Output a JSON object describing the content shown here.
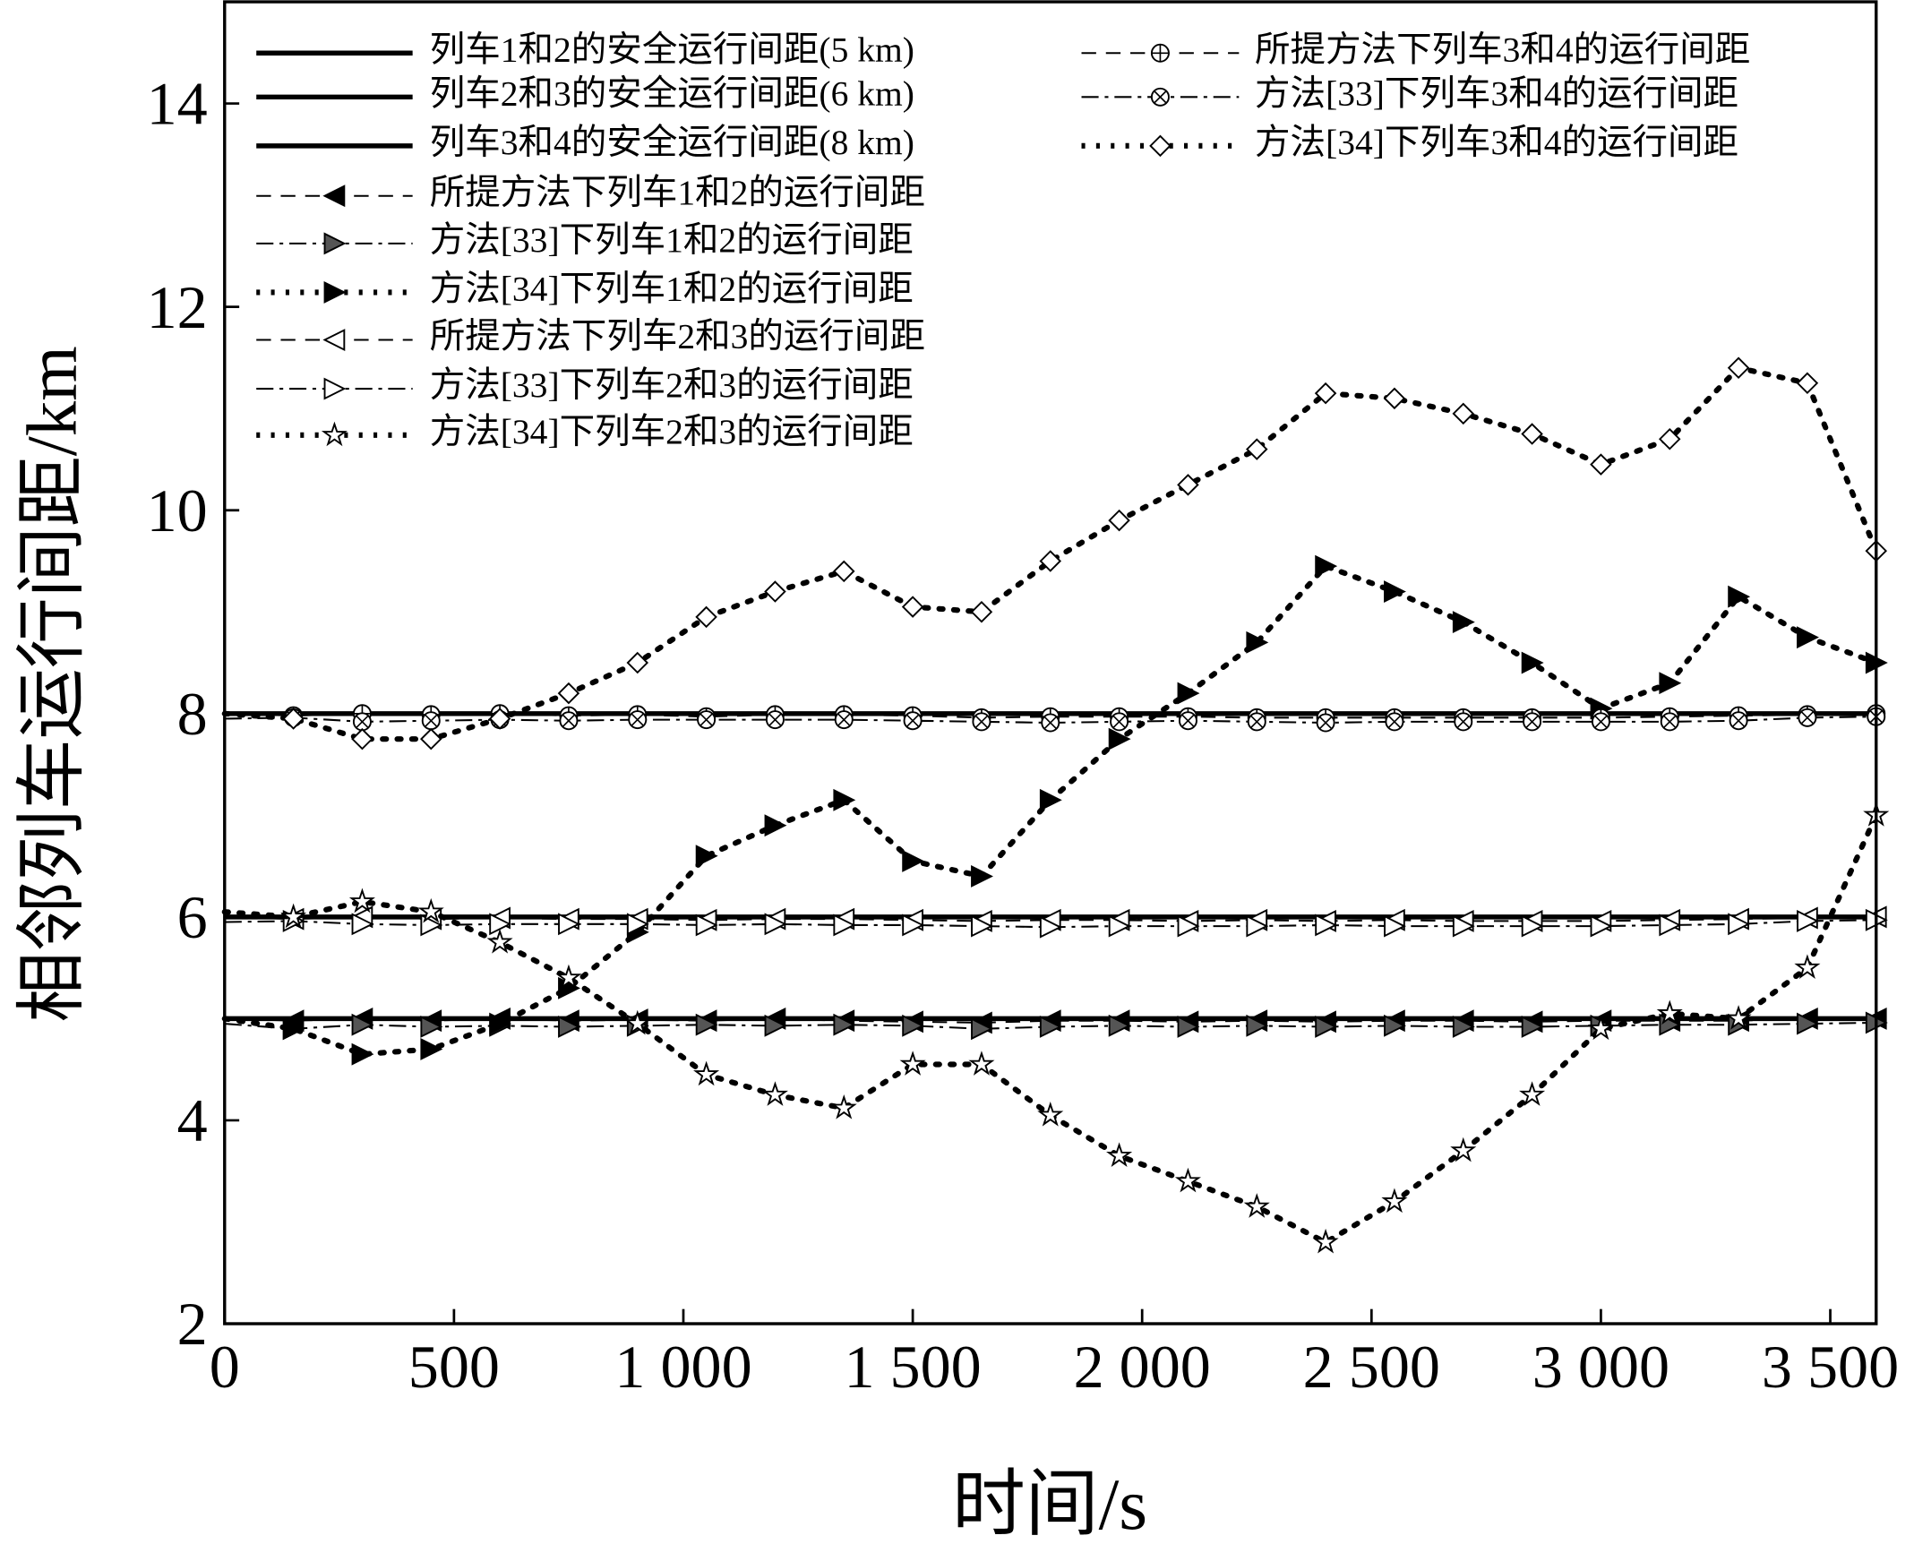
{
  "chart_data": {
    "type": "line",
    "xlabel": "时间/s",
    "ylabel": "相邻列车运行间距/km",
    "x": [
      0,
      150,
      300,
      450,
      600,
      750,
      900,
      1050,
      1200,
      1350,
      1500,
      1650,
      1800,
      1950,
      2100,
      2250,
      2400,
      2550,
      2700,
      2850,
      3000,
      3150,
      3300,
      3450,
      3600
    ],
    "xlim": [
      0,
      3600
    ],
    "xticks": [
      0,
      500,
      {
        "value": 1000,
        "label": "1 000"
      },
      {
        "value": 1500,
        "label": "1 500"
      },
      {
        "value": 2000,
        "label": "2 000"
      },
      {
        "value": 2500,
        "label": "2 500"
      },
      {
        "value": 3000,
        "label": "3 000"
      },
      {
        "value": 3500,
        "label": "3 500"
      }
    ],
    "ylim": [
      2,
      15
    ],
    "yticks": [
      2,
      4,
      6,
      8,
      10,
      12,
      14
    ],
    "series": [
      {
        "name": "列车1和2的安全运行间距(5 km)",
        "color": "#000",
        "style": "solid",
        "marker": "none",
        "values": [
          5,
          5,
          5,
          5,
          5,
          5,
          5,
          5,
          5,
          5,
          5,
          5,
          5,
          5,
          5,
          5,
          5,
          5,
          5,
          5,
          5,
          5,
          5,
          5,
          5
        ]
      },
      {
        "name": "列车2和3的安全运行间距(6 km)",
        "color": "#000",
        "style": "solid",
        "marker": "none",
        "values": [
          6,
          6,
          6,
          6,
          6,
          6,
          6,
          6,
          6,
          6,
          6,
          6,
          6,
          6,
          6,
          6,
          6,
          6,
          6,
          6,
          6,
          6,
          6,
          6,
          6
        ]
      },
      {
        "name": "列车3和4的安全运行间距(8 km)",
        "color": "#000",
        "style": "solid",
        "marker": "none",
        "values": [
          8,
          8,
          8,
          8,
          8,
          8,
          8,
          8,
          8,
          8,
          8,
          8,
          8,
          8,
          8,
          8,
          8,
          8,
          8,
          8,
          8,
          8,
          8,
          8,
          8
        ]
      },
      {
        "name": "所提方法下列车1和2的运行间距",
        "color": "#000",
        "style": "dashed",
        "marker": "tri-left-half",
        "values": [
          5,
          4.98,
          5,
          4.98,
          5,
          4.98,
          4.99,
          4.98,
          5,
          4.98,
          4.97,
          4.96,
          4.98,
          4.98,
          4.97,
          4.98,
          4.97,
          4.98,
          4.98,
          4.97,
          4.98,
          4.98,
          4.98,
          5,
          5
        ]
      },
      {
        "name": "方法[33]下列车1和2的运行间距",
        "color": "#000",
        "style": "dashdot",
        "marker": "tri-right-half",
        "values": [
          4.95,
          4.9,
          4.94,
          4.92,
          4.93,
          4.92,
          4.93,
          4.94,
          4.93,
          4.94,
          4.93,
          4.9,
          4.92,
          4.93,
          4.92,
          4.93,
          4.92,
          4.93,
          4.92,
          4.92,
          4.93,
          4.94,
          4.94,
          4.95,
          4.96
        ]
      },
      {
        "name": "方法[34]下列车1和2的运行间距",
        "color": "#000",
        "style": "dotted",
        "marker": "tri-right-filled",
        "values": [
          5,
          4.9,
          4.65,
          4.7,
          4.95,
          5.3,
          5.85,
          6.6,
          6.9,
          7.15,
          6.55,
          6.4,
          7.15,
          7.75,
          8.2,
          8.7,
          9.45,
          9.2,
          8.9,
          8.5,
          8.05,
          8.3,
          9.15,
          8.75,
          8.5
        ]
      },
      {
        "name": "所提方法下列车2和3的运行间距",
        "color": "#000",
        "style": "dashed",
        "marker": "tri-left",
        "values": [
          6,
          5.98,
          6,
          5.98,
          5.99,
          5.98,
          5.98,
          5.97,
          5.98,
          5.98,
          5.97,
          5.96,
          5.97,
          5.97,
          5.96,
          5.97,
          5.96,
          5.97,
          5.96,
          5.96,
          5.96,
          5.97,
          5.98,
          5.99,
          6
        ]
      },
      {
        "name": "方法[33]下列车2和3的运行间距",
        "color": "#000",
        "style": "dashdot",
        "marker": "tri-right",
        "values": [
          5.95,
          5.96,
          5.93,
          5.92,
          5.93,
          5.93,
          5.93,
          5.92,
          5.93,
          5.92,
          5.92,
          5.91,
          5.9,
          5.91,
          5.91,
          5.91,
          5.92,
          5.91,
          5.91,
          5.91,
          5.91,
          5.92,
          5.93,
          5.96,
          5.97
        ]
      },
      {
        "name": "方法[34]下列车2和3的运行间距",
        "color": "#000",
        "style": "dotted",
        "marker": "star",
        "values": [
          6.05,
          6,
          6.15,
          6.05,
          5.75,
          5.4,
          4.95,
          4.45,
          4.25,
          4.12,
          4.55,
          4.55,
          4.05,
          3.65,
          3.4,
          3.15,
          2.8,
          3.2,
          3.7,
          4.25,
          4.9,
          5.05,
          5,
          5.5,
          7
        ]
      },
      {
        "name": "所提方法下列车3和4的运行间距",
        "color": "#000",
        "style": "dashed",
        "marker": "circle-plus",
        "values": [
          8,
          7.98,
          8,
          7.99,
          8,
          7.98,
          7.99,
          7.97,
          7.99,
          7.99,
          7.98,
          7.96,
          7.97,
          7.97,
          7.97,
          7.96,
          7.96,
          7.96,
          7.96,
          7.96,
          7.96,
          7.97,
          7.98,
          7.99,
          8
        ]
      },
      {
        "name": "方法[33]下列车3和4的运行间距",
        "color": "#000",
        "style": "dashdot",
        "marker": "circle-x",
        "values": [
          7.95,
          7.96,
          7.92,
          7.93,
          7.94,
          7.93,
          7.94,
          7.94,
          7.94,
          7.94,
          7.93,
          7.92,
          7.91,
          7.92,
          7.93,
          7.92,
          7.91,
          7.92,
          7.92,
          7.92,
          7.92,
          7.92,
          7.93,
          7.96,
          7.97
        ]
      },
      {
        "name": "方法[34]下列车3和4的运行间距",
        "color": "#000",
        "style": "dotted",
        "marker": "diamond",
        "values": [
          8,
          7.95,
          7.75,
          7.75,
          7.95,
          8.2,
          8.5,
          8.95,
          9.2,
          9.4,
          9.05,
          9,
          9.5,
          9.9,
          10.25,
          10.6,
          11.15,
          11.1,
          10.95,
          10.75,
          10.45,
          10.7,
          11.4,
          11.25,
          9.6
        ]
      }
    ]
  }
}
